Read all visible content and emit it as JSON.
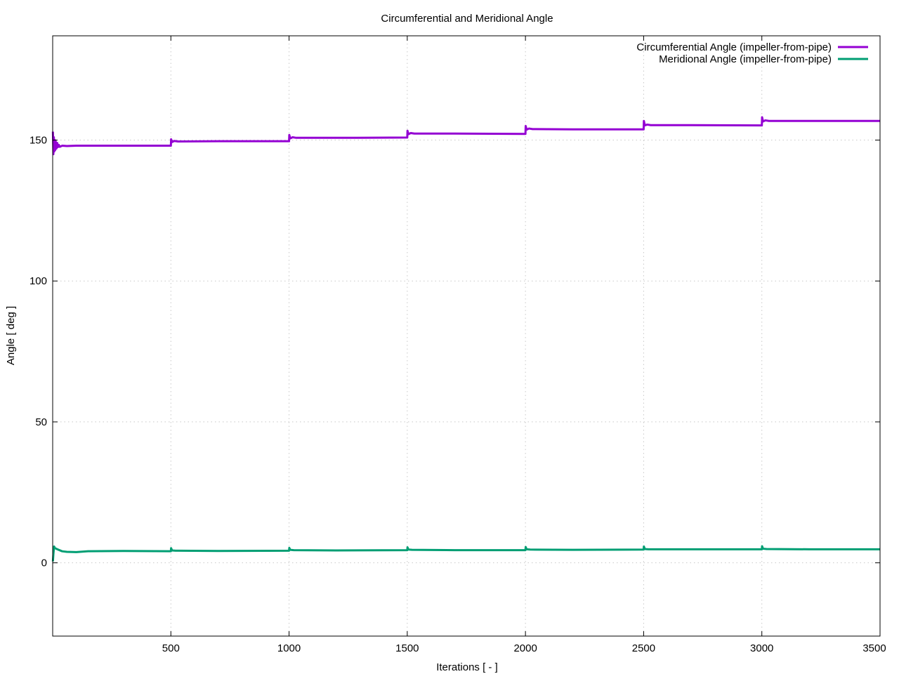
{
  "chart_data": {
    "type": "line",
    "title": "Circumferential and Meridional Angle",
    "xlabel": "Iterations [ - ]",
    "ylabel": "Angle [ deg ]",
    "xlim": [
      0,
      3500
    ],
    "ylim": [
      -26,
      187
    ],
    "xticks": [
      500,
      1000,
      1500,
      2000,
      2500,
      3000,
      3500
    ],
    "yticks": [
      0,
      50,
      100,
      150
    ],
    "grid": true,
    "legend_position": "top-right",
    "series": [
      {
        "name": "Circumferential Angle (impeller-from-pipe)",
        "color": "#9400d3",
        "points": [
          [
            1,
            153
          ],
          [
            3,
            145
          ],
          [
            5,
            151
          ],
          [
            7,
            146
          ],
          [
            9,
            150
          ],
          [
            11,
            146.5
          ],
          [
            13,
            149.5
          ],
          [
            16,
            147
          ],
          [
            19,
            149
          ],
          [
            22,
            147.5
          ],
          [
            26,
            148.3
          ],
          [
            30,
            147.6
          ],
          [
            40,
            148
          ],
          [
            60,
            147.9
          ],
          [
            100,
            148
          ],
          [
            200,
            148
          ],
          [
            300,
            148
          ],
          [
            500,
            148
          ],
          [
            501,
            150.3
          ],
          [
            505,
            149.3
          ],
          [
            515,
            149.7
          ],
          [
            530,
            149.5
          ],
          [
            700,
            149.6
          ],
          [
            1000,
            149.6
          ],
          [
            1001,
            151.8
          ],
          [
            1005,
            150.6
          ],
          [
            1015,
            151
          ],
          [
            1030,
            150.8
          ],
          [
            1200,
            150.8
          ],
          [
            1500,
            150.9
          ],
          [
            1501,
            153.3
          ],
          [
            1505,
            152.1
          ],
          [
            1515,
            152.5
          ],
          [
            1530,
            152.3
          ],
          [
            1700,
            152.3
          ],
          [
            2000,
            152.2
          ],
          [
            2001,
            155
          ],
          [
            2005,
            153.7
          ],
          [
            2015,
            154.1
          ],
          [
            2030,
            153.9
          ],
          [
            2200,
            153.8
          ],
          [
            2500,
            153.8
          ],
          [
            2501,
            156.8
          ],
          [
            2505,
            155.2
          ],
          [
            2515,
            155.5
          ],
          [
            2530,
            155.3
          ],
          [
            2700,
            155.3
          ],
          [
            3000,
            155.2
          ],
          [
            3001,
            158.1
          ],
          [
            3005,
            156.6
          ],
          [
            3015,
            157
          ],
          [
            3030,
            156.8
          ],
          [
            3200,
            156.8
          ],
          [
            3500,
            156.8
          ]
        ]
      },
      {
        "name": "Meridional Angle (impeller-from-pipe)",
        "color": "#009e73",
        "points": [
          [
            1,
            0.5
          ],
          [
            3,
            3
          ],
          [
            6,
            5.8
          ],
          [
            10,
            5.2
          ],
          [
            20,
            4.8
          ],
          [
            40,
            4.1
          ],
          [
            60,
            3.9
          ],
          [
            100,
            3.8
          ],
          [
            150,
            4.1
          ],
          [
            300,
            4.2
          ],
          [
            500,
            4.1
          ],
          [
            501,
            5.2
          ],
          [
            505,
            4.4
          ],
          [
            520,
            4.3
          ],
          [
            700,
            4.2
          ],
          [
            1000,
            4.3
          ],
          [
            1001,
            5.3
          ],
          [
            1005,
            4.6
          ],
          [
            1020,
            4.5
          ],
          [
            1200,
            4.4
          ],
          [
            1500,
            4.5
          ],
          [
            1501,
            5.5
          ],
          [
            1505,
            4.7
          ],
          [
            1520,
            4.6
          ],
          [
            1700,
            4.5
          ],
          [
            2000,
            4.5
          ],
          [
            2001,
            5.6
          ],
          [
            2005,
            4.8
          ],
          [
            2020,
            4.7
          ],
          [
            2200,
            4.6
          ],
          [
            2500,
            4.7
          ],
          [
            2501,
            5.8
          ],
          [
            2505,
            4.9
          ],
          [
            2520,
            4.8
          ],
          [
            2700,
            4.8
          ],
          [
            3000,
            4.8
          ],
          [
            3001,
            5.9
          ],
          [
            3005,
            5
          ],
          [
            3020,
            4.9
          ],
          [
            3200,
            4.8
          ],
          [
            3500,
            4.8
          ]
        ]
      }
    ]
  }
}
